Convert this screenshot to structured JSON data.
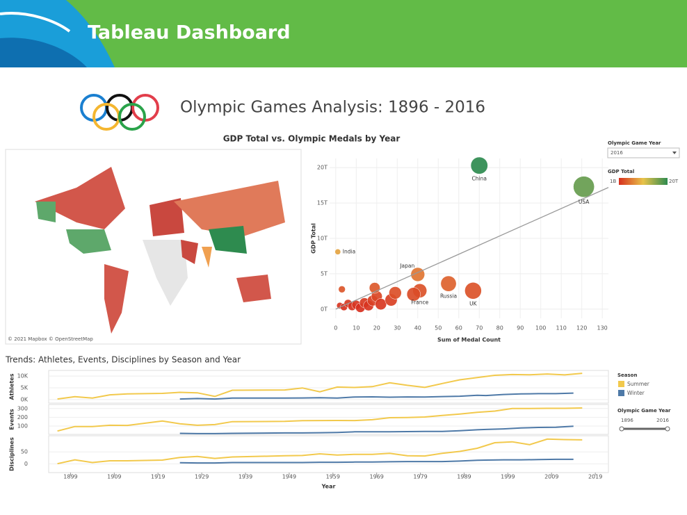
{
  "header": "Tableau Dashboard",
  "title": "Olympic Games Analysis: 1896 - 2016",
  "map_attribution": "© 2021 Mapbox © OpenStreetMap",
  "filters": {
    "game_year": {
      "label": "Olympic Game Year",
      "value": "2016"
    },
    "year_range": {
      "label": "Olympic Game Year",
      "values": [
        "1896",
        "2016"
      ]
    }
  },
  "chart_data": [
    {
      "type": "scatter",
      "title": "GDP Total vs. Olympic Medals by Year",
      "x_label": "Sum of Medal Count",
      "y_label": "GDP Total",
      "xlim": [
        -3,
        133
      ],
      "xticks": [
        0,
        10,
        20,
        30,
        40,
        50,
        60,
        70,
        80,
        90,
        100,
        110,
        120,
        130
      ],
      "ylim": [
        -1.3,
        21.3
      ],
      "yticks": [
        {
          "value": 0,
          "label": "0T"
        },
        {
          "value": 5,
          "label": "5T"
        },
        {
          "value": 10,
          "label": "10T"
        },
        {
          "value": 15,
          "label": "15T"
        },
        {
          "value": 20,
          "label": "20T"
        }
      ],
      "grid": true,
      "labels": [
        "China",
        "USA",
        "India",
        "Japan",
        "France",
        "Russia",
        "UK",
        null,
        null,
        null,
        null,
        null,
        null,
        null,
        null,
        null,
        null,
        null,
        null,
        null,
        null,
        null,
        null
      ],
      "x": [
        70,
        121,
        1,
        40,
        41,
        55,
        67,
        2,
        4,
        6,
        8,
        10,
        12,
        14,
        16,
        18,
        20,
        22,
        27,
        29,
        38,
        19,
        3
      ],
      "values": [
        20.3,
        17.3,
        8.1,
        4.9,
        2.6,
        3.6,
        2.6,
        0.5,
        0.3,
        0.8,
        0.4,
        0.6,
        0.2,
        0.9,
        0.5,
        1.2,
        1.8,
        0.7,
        1.3,
        2.3,
        2.1,
        3.0,
        2.8
      ],
      "trend_line": {
        "x": [
          0,
          133
        ],
        "y": [
          0,
          17.2
        ]
      },
      "trend_color": "#999999",
      "color_legend": {
        "title": "GDP Total",
        "labels": [
          "1B",
          "20T"
        ],
        "colors": [
          "#d7301f",
          "#e8c34a",
          "#2e8b4f"
        ]
      }
    },
    {
      "type": "line",
      "title": "Trends: Athletes, Events, Disciplines by Season and Year",
      "legend_title": "Season",
      "y_label": "Athletes",
      "xlim": [
        1894,
        2022
      ],
      "ylim": [
        -1500,
        12400
      ],
      "yticks": [
        {
          "value": 0,
          "label": "0K"
        },
        {
          "value": 5000,
          "label": "5K"
        },
        {
          "value": 10000,
          "label": "10K"
        }
      ],
      "series": [
        {
          "name": "Summer",
          "color": "#f2c94c",
          "x": [
            1896,
            1900,
            1904,
            1908,
            1912,
            1920,
            1924,
            1928,
            1932,
            1936,
            1948,
            1952,
            1956,
            1960,
            1964,
            1968,
            1972,
            1976,
            1980,
            1984,
            1988,
            1992,
            1996,
            2000,
            2004,
            2008,
            2012,
            2016
          ],
          "values": [
            241,
            1225,
            650,
            2008,
            2407,
            2626,
            3089,
            2883,
            1332,
            3963,
            4104,
            4955,
            3314,
            5338,
            5151,
            5516,
            7134,
            6084,
            5179,
            6829,
            8397,
            9386,
            10318,
            10651,
            10557,
            10899,
            10517,
            11179
          ]
        },
        {
          "name": "Winter",
          "color": "#4e79a7",
          "x": [
            1924,
            1928,
            1932,
            1936,
            1948,
            1952,
            1956,
            1960,
            1964,
            1968,
            1972,
            1976,
            1980,
            1984,
            1988,
            1992,
            1994,
            1998,
            2002,
            2006,
            2010,
            2014
          ],
          "values": [
            258,
            464,
            252,
            668,
            669,
            694,
            821,
            665,
            1091,
            1158,
            1006,
            1123,
            1072,
            1274,
            1423,
            1801,
            1737,
            2176,
            2399,
            2508,
            2536,
            2745
          ]
        }
      ]
    },
    {
      "type": "line",
      "y_label": "Events",
      "xlim": [
        1894,
        2022
      ],
      "ylim": [
        5,
        346
      ],
      "yticks": [
        100,
        200,
        300
      ],
      "series": [
        {
          "name": "Summer",
          "color": "#f2c94c",
          "x": [
            1896,
            1900,
            1904,
            1908,
            1912,
            1920,
            1924,
            1928,
            1932,
            1936,
            1948,
            1952,
            1956,
            1960,
            1964,
            1968,
            1972,
            1976,
            1980,
            1984,
            1988,
            1992,
            1996,
            2000,
            2004,
            2008,
            2012,
            2016
          ],
          "values": [
            43,
            95,
            95,
            109,
            107,
            158,
            126,
            109,
            117,
            150,
            153,
            161,
            163,
            164,
            163,
            172,
            195,
            198,
            203,
            221,
            237,
            257,
            271,
            300,
            301,
            302,
            302,
            306
          ]
        },
        {
          "name": "Winter",
          "color": "#4e79a7",
          "x": [
            1924,
            1928,
            1932,
            1936,
            1948,
            1952,
            1956,
            1960,
            1964,
            1968,
            1972,
            1976,
            1980,
            1984,
            1988,
            1992,
            1994,
            1998,
            2002,
            2006,
            2010,
            2014
          ],
          "values": [
            17,
            14,
            14,
            17,
            22,
            22,
            24,
            27,
            34,
            35,
            35,
            37,
            38,
            39,
            46,
            57,
            61,
            68,
            78,
            84,
            86,
            98
          ]
        }
      ]
    },
    {
      "type": "line",
      "y_label": "Disciplines",
      "x_label": "Year",
      "xlim": [
        1894,
        2022
      ],
      "xticks": [
        1899,
        1909,
        1919,
        1929,
        1939,
        1949,
        1959,
        1969,
        1979,
        1989,
        1999,
        2009,
        2019
      ],
      "ylim": [
        -36,
        117
      ],
      "yticks": [
        0,
        50
      ],
      "series": [
        {
          "name": "Summer",
          "color": "#f2c94c",
          "x": [
            1896,
            1900,
            1904,
            1908,
            1912,
            1920,
            1924,
            1928,
            1932,
            1936,
            1948,
            1952,
            1956,
            1960,
            1964,
            1968,
            1972,
            1976,
            1980,
            1984,
            1988,
            1992,
            1996,
            2000,
            2004,
            2008,
            2012,
            2016
          ],
          "values": [
            1,
            17,
            6,
            13,
            13,
            16,
            27,
            31,
            23,
            29,
            34,
            35,
            42,
            37,
            40,
            40,
            44,
            34,
            33,
            44,
            52,
            65,
            88,
            92,
            80,
            103,
            101,
            100
          ]
        },
        {
          "name": "Winter",
          "color": "#4e79a7",
          "x": [
            1924,
            1928,
            1932,
            1936,
            1948,
            1952,
            1956,
            1960,
            1964,
            1968,
            1972,
            1976,
            1980,
            1984,
            1988,
            1992,
            1994,
            1998,
            2002,
            2006,
            2010,
            2014
          ],
          "values": [
            5,
            4,
            4,
            6,
            6,
            6,
            7,
            7,
            8,
            8,
            9,
            10,
            10,
            10,
            12,
            15,
            16,
            17,
            17,
            18,
            19,
            19
          ]
        }
      ]
    }
  ]
}
